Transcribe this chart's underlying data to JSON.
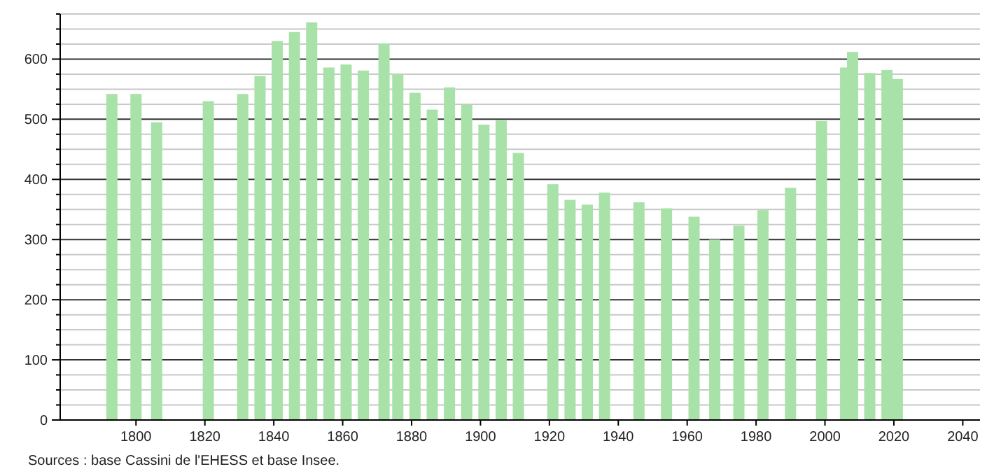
{
  "chart_data": {
    "type": "bar",
    "color": "#a8e2a8",
    "x": [
      1793,
      1800,
      1806,
      1821,
      1831,
      1836,
      1841,
      1846,
      1851,
      1856,
      1861,
      1866,
      1872,
      1876,
      1881,
      1886,
      1891,
      1896,
      1901,
      1906,
      1911,
      1921,
      1926,
      1931,
      1936,
      1946,
      1954,
      1962,
      1968,
      1975,
      1982,
      1990,
      1999,
      2006,
      2008,
      2013,
      2018,
      2021
    ],
    "values": [
      542,
      542,
      495,
      530,
      542,
      572,
      630,
      645,
      661,
      586,
      591,
      581,
      626,
      575,
      544,
      516,
      553,
      524,
      491,
      499,
      444,
      392,
      366,
      358,
      378,
      362,
      352,
      338,
      300,
      323,
      349,
      386,
      497,
      586,
      612,
      577,
      582,
      567
    ],
    "xlim": [
      1778,
      2045
    ],
    "xticks": [
      1800,
      1820,
      1840,
      1860,
      1880,
      1900,
      1920,
      1940,
      1960,
      1980,
      2000,
      2020,
      2040
    ],
    "ylim": [
      0,
      675
    ],
    "yticks": [
      0,
      {
        "value": 25,
        "label": null
      },
      {
        "value": 50,
        "label": null
      },
      {
        "value": 75,
        "label": null
      },
      100,
      {
        "value": 125,
        "label": null
      },
      {
        "value": 150,
        "label": null
      },
      {
        "value": 175,
        "label": null
      },
      200,
      {
        "value": 225,
        "label": null
      },
      {
        "value": 250,
        "label": null
      },
      {
        "value": 275,
        "label": null
      },
      300,
      {
        "value": 325,
        "label": null
      },
      {
        "value": 350,
        "label": null
      },
      {
        "value": 375,
        "label": null
      },
      400,
      {
        "value": 425,
        "label": null
      },
      {
        "value": 450,
        "label": null
      },
      {
        "value": 475,
        "label": null
      },
      500,
      {
        "value": 525,
        "label": null
      },
      {
        "value": 550,
        "label": null
      },
      {
        "value": 575,
        "label": null
      },
      600,
      {
        "value": 625,
        "label": null
      },
      {
        "value": 650,
        "label": null
      },
      {
        "value": 675,
        "label": null
      }
    ],
    "grid": "y",
    "annotations": [
      "Sources : base Cassini de l'EHESS et base Insee."
    ]
  }
}
